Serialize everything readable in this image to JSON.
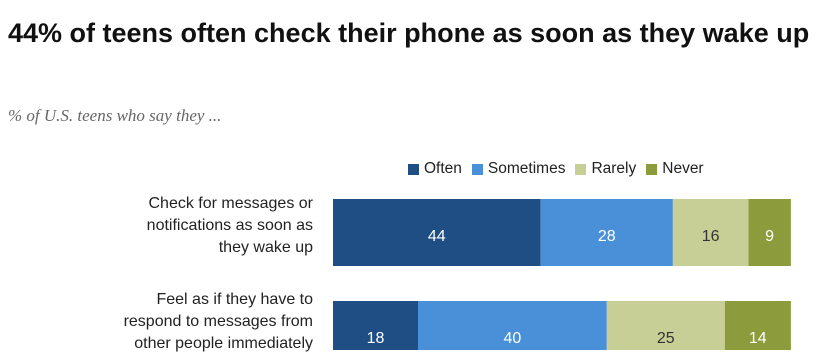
{
  "title": "44% of teens often check their phone as soon as they wake up",
  "subtitle": "% of U.S. teens who say they ...",
  "chart_data": {
    "type": "bar",
    "orientation": "horizontal-stacked",
    "categories": [
      "Check for messages or notifications as soon as they wake up",
      "Feel as if they have to respond to messages from other people immediately"
    ],
    "category_lines": [
      [
        "Check for messages or",
        "notifications as soon as",
        "they wake up"
      ],
      [
        "Feel as if they have to",
        "respond to messages from",
        "other people immediately"
      ]
    ],
    "series": [
      {
        "name": "Often",
        "values": [
          44,
          18
        ],
        "color": "#1f4e85",
        "label_color": "#ffffff"
      },
      {
        "name": "Sometimes",
        "values": [
          28,
          40
        ],
        "color": "#4a90d9",
        "label_color": "#ffffff"
      },
      {
        "name": "Rarely",
        "values": [
          16,
          25
        ],
        "color": "#c7cf96",
        "label_color": "#333333"
      },
      {
        "name": "Never",
        "values": [
          9,
          14
        ],
        "color": "#8c9c3c",
        "label_color": "#ffffff"
      }
    ],
    "xlim": [
      0,
      100
    ],
    "legend": "top-right",
    "grid": false
  }
}
